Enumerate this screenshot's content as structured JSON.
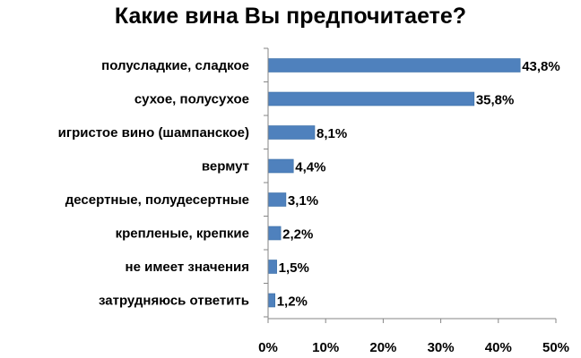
{
  "chart_data": {
    "type": "bar",
    "orientation": "horizontal",
    "title": "Какие вина Вы предпочитаете?",
    "categories": [
      "полусладкие, сладкое",
      "сухое, полусухое",
      "игристое вино (шампанское)",
      "вермут",
      "десертные, полудесертные",
      "крепленые, крепкие",
      "не имеет значения",
      "затрудняюсь ответить"
    ],
    "values": [
      43.8,
      35.8,
      8.1,
      4.4,
      3.1,
      2.2,
      1.5,
      1.2
    ],
    "data_labels": [
      "43,8%",
      "35,8%",
      "8,1%",
      "4,4%",
      "3,1%",
      "2,2%",
      "1,5%",
      "1,2%"
    ],
    "xlim": [
      0,
      50
    ],
    "x_ticks": [
      0,
      10,
      20,
      30,
      40,
      50
    ],
    "x_tick_labels": [
      "0%",
      "10%",
      "20%",
      "30%",
      "40%",
      "50%"
    ],
    "grid": false,
    "legend": "none",
    "colors": {
      "bar": "#4f81bd",
      "bar_stroke": "#3a6ea5",
      "axis": "#868686"
    }
  }
}
